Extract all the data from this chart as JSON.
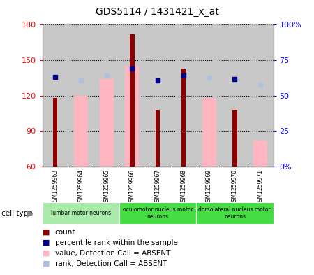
{
  "title": "GDS5114 / 1431421_x_at",
  "samples": [
    "GSM1259963",
    "GSM1259964",
    "GSM1259965",
    "GSM1259966",
    "GSM1259967",
    "GSM1259968",
    "GSM1259969",
    "GSM1259970",
    "GSM1259971"
  ],
  "count_values": [
    118,
    null,
    null,
    172,
    108,
    143,
    null,
    108,
    null
  ],
  "value_absent": [
    null,
    120,
    134,
    145,
    null,
    null,
    118,
    null,
    82
  ],
  "percentile_dark": [
    136,
    null,
    null,
    143,
    133,
    137,
    null,
    134,
    null
  ],
  "percentile_light": [
    null,
    133,
    137,
    null,
    null,
    null,
    135,
    null,
    129
  ],
  "ylim_left": [
    60,
    180
  ],
  "ylim_right": [
    0,
    100
  ],
  "yticks_left": [
    60,
    90,
    120,
    150,
    180
  ],
  "yticks_right": [
    0,
    25,
    50,
    75,
    100
  ],
  "count_color": "#8B0000",
  "value_absent_color": "#FFB6C1",
  "rank_dark_color": "#00008B",
  "rank_light_color": "#B0C0E0",
  "tick_area_color": "#C8C8C8",
  "group_colors": [
    "#AAEAAA",
    "#44DD44",
    "#44DD44"
  ],
  "group_texts": [
    "lumbar motor neurons",
    "oculomotor nucleus motor\nneurons",
    "dorsolateral nucleus motor\nneurons"
  ],
  "group_ranges": [
    [
      0,
      3
    ],
    [
      3,
      6
    ],
    [
      6,
      9
    ]
  ],
  "legend_items": [
    "count",
    "percentile rank within the sample",
    "value, Detection Call = ABSENT",
    "rank, Detection Call = ABSENT"
  ],
  "legend_colors": [
    "#8B0000",
    "#00008B",
    "#FFB6C1",
    "#B0C0E0"
  ]
}
